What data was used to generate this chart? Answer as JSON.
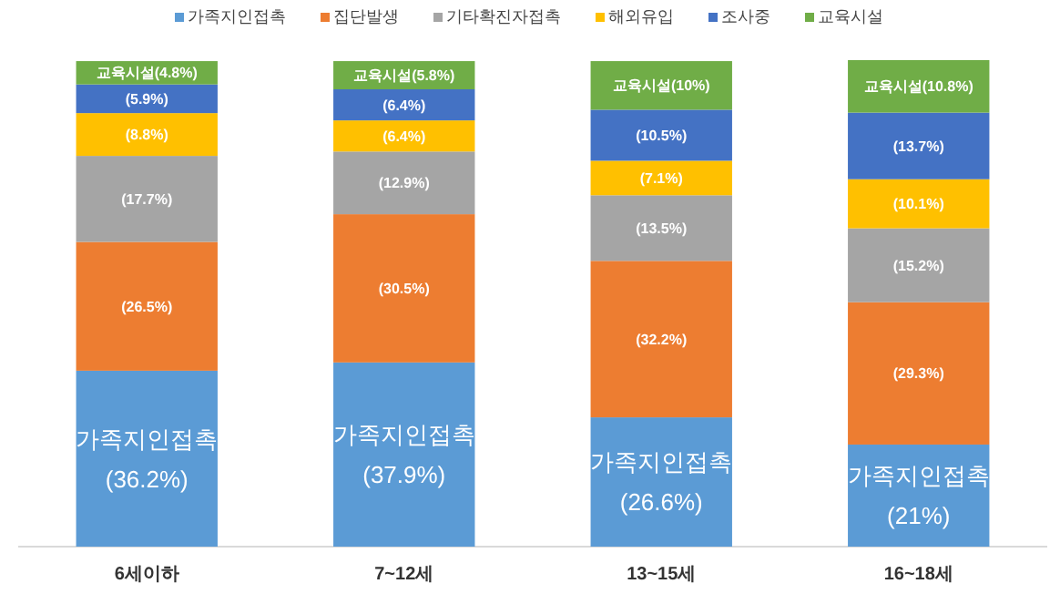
{
  "chart_data": {
    "type": "bar",
    "stacked": true,
    "legend": "top",
    "categories": [
      "6세이하",
      "7~12세",
      "13~15세",
      "16~18세"
    ],
    "series": [
      {
        "name": "가족지인접촉",
        "color": "#5b9bd5",
        "values": [
          36.2,
          37.9,
          26.6,
          21
        ],
        "value_labels": [
          "가족지인접촉\n(36.2%)",
          "가족지인접촉\n(37.9%)",
          "가족지인접촉\n(26.6%)",
          "가족지인접촉\n(21%)"
        ]
      },
      {
        "name": "집단발생",
        "color": "#ed7d31",
        "values": [
          26.5,
          30.5,
          32.2,
          29.3
        ],
        "value_labels": [
          "(26.5%)",
          "(30.5%)",
          "(32.2%)",
          "(29.3%)"
        ]
      },
      {
        "name": "기타확진자접촉",
        "color": "#a5a5a5",
        "values": [
          17.7,
          12.9,
          13.5,
          15.2
        ],
        "value_labels": [
          "(17.7%)",
          "(12.9%)",
          "(13.5%)",
          "(15.2%)"
        ]
      },
      {
        "name": "해외유입",
        "color": "#ffc000",
        "values": [
          8.8,
          6.4,
          7.1,
          10.1
        ],
        "value_labels": [
          "(8.8%)",
          "(6.4%)",
          "(7.1%)",
          "(10.1%)"
        ]
      },
      {
        "name": "조사중",
        "color": "#4472c4",
        "values": [
          5.9,
          6.4,
          10.5,
          13.7
        ],
        "value_labels": [
          "(5.9%)",
          "(6.4%)",
          "(10.5%)",
          "(13.7%)"
        ]
      },
      {
        "name": "교육시설",
        "color": "#70ad47",
        "values": [
          4.8,
          5.8,
          10,
          10.8
        ],
        "value_labels": [
          "교육시설(4.8%)",
          "교육시설(5.8%)",
          "교육시설(10%)",
          "교육시설(10.8%)"
        ]
      }
    ]
  }
}
